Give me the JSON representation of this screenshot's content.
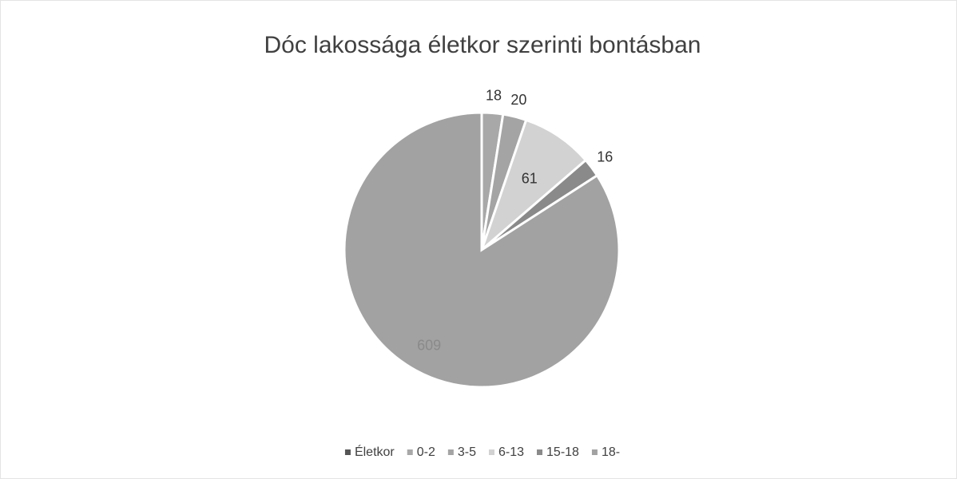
{
  "chart_data": {
    "type": "pie",
    "title": "Dóc lakossága életkor szerinti bontásban",
    "categories": [
      "Életkor",
      "0-2",
      "3-5",
      "6-13",
      "15-18",
      "18-"
    ],
    "values": [
      null,
      18,
      20,
      61,
      16,
      609
    ],
    "colors": [
      "#555555",
      "#a8a8a8",
      "#a4a4a4",
      "#d2d2d2",
      "#8a8a8a",
      "#a2a2a2"
    ],
    "legend": "bottom"
  }
}
